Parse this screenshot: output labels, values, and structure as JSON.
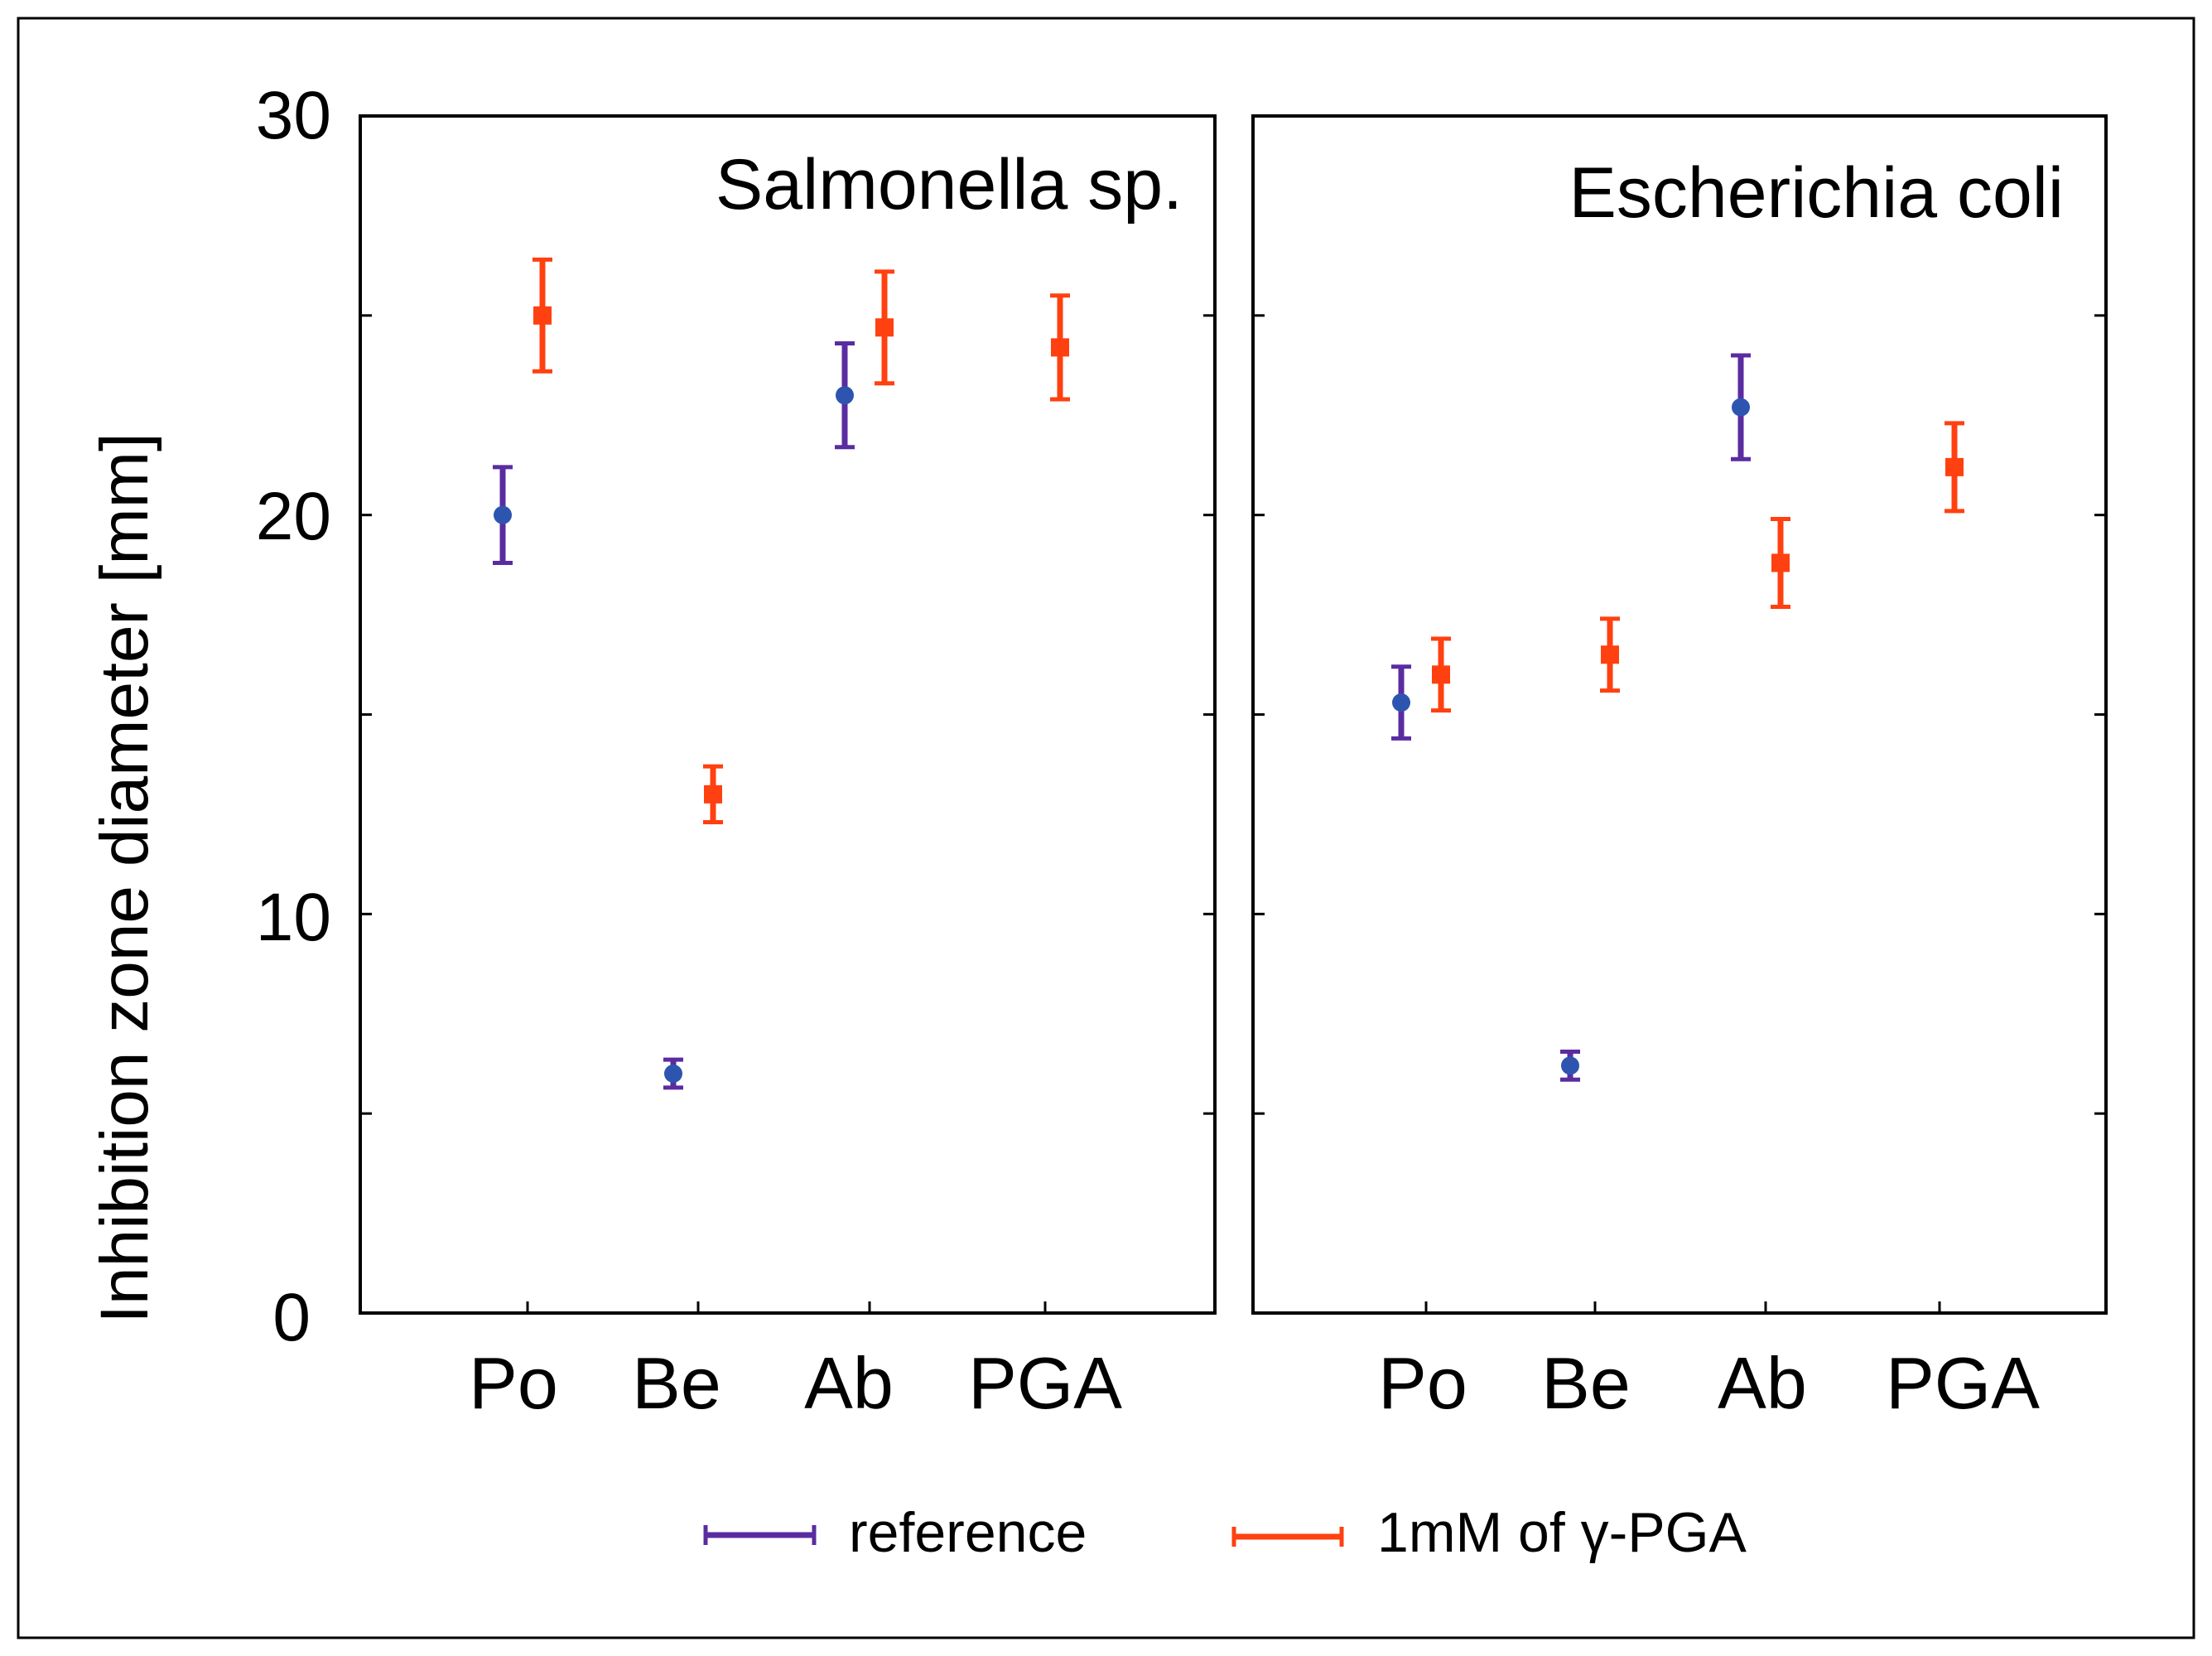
{
  "chart_data": {
    "type": "scatter",
    "ylabel": "Inhibition zone diameter [mm]",
    "ylim": [
      0,
      30
    ],
    "y_ticks": [
      0,
      10,
      20,
      30
    ],
    "y_tick_labels": [
      "0",
      "10",
      "20",
      "30"
    ],
    "categories": [
      "Po",
      "Be",
      "Ab",
      "PGA"
    ],
    "legend_position": "bottom",
    "series": [
      {
        "name": "reference",
        "color": "#5a2ca0",
        "marker_color": "#2d55b0",
        "marker": "circle"
      },
      {
        "name": "1mM of γ-PGA",
        "color": "#ff4010",
        "marker_color": "#ff4010",
        "marker": "square"
      }
    ],
    "panels": [
      {
        "title": "Salmonella sp.",
        "data": {
          "reference": [
            {
              "category": "Po",
              "value": 20.0,
              "error": 1.2
            },
            {
              "category": "Be",
              "value": 6.0,
              "error": 0.35
            },
            {
              "category": "Ab",
              "value": 23.0,
              "error": 1.3
            }
          ],
          "1mM of γ-PGA": [
            {
              "category": "Po",
              "value": 25.0,
              "error": 1.4
            },
            {
              "category": "Be",
              "value": 13.0,
              "error": 0.7
            },
            {
              "category": "Ab",
              "value": 24.7,
              "error": 1.4
            },
            {
              "category": "PGA",
              "value": 24.2,
              "error": 1.3
            }
          ]
        }
      },
      {
        "title": "Escherichia coli",
        "data": {
          "reference": [
            {
              "category": "Po",
              "value": 15.3,
              "error": 0.9
            },
            {
              "category": "Be",
              "value": 6.2,
              "error": 0.35
            },
            {
              "category": "Ab",
              "value": 22.7,
              "error": 1.3
            }
          ],
          "1mM of γ-PGA": [
            {
              "category": "Po",
              "value": 16.0,
              "error": 0.9
            },
            {
              "category": "Be",
              "value": 16.5,
              "error": 0.9
            },
            {
              "category": "Ab",
              "value": 18.8,
              "error": 1.1
            },
            {
              "category": "PGA",
              "value": 21.2,
              "error": 1.1
            }
          ]
        }
      }
    ]
  }
}
